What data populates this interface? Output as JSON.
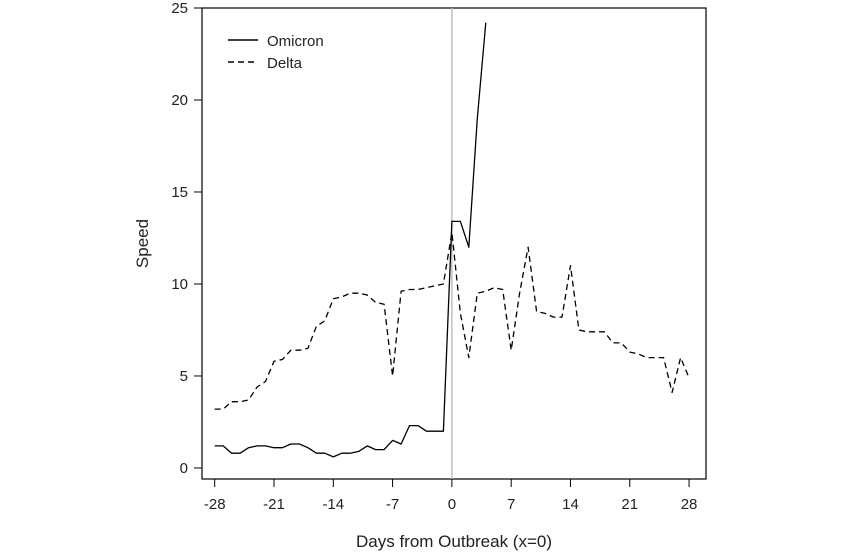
{
  "chart_data": {
    "type": "line",
    "xlabel": "Days from Outbreak (x=0)",
    "ylabel": "Speed",
    "xlim": [
      -29.5,
      30
    ],
    "ylim": [
      -0.6,
      25
    ],
    "xticks": [
      -28,
      -21,
      -14,
      -7,
      0,
      7,
      14,
      21,
      28
    ],
    "yticks": [
      0,
      5,
      10,
      15,
      20,
      25
    ],
    "xtick_labels": [
      "-28",
      "-21",
      "-14",
      "-7",
      "0",
      "7",
      "14",
      "21",
      "28"
    ],
    "ytick_labels": [
      "0",
      "5",
      "10",
      "15",
      "20",
      "25"
    ],
    "vline": 0,
    "legend_position": "top-left",
    "grid": false,
    "series": [
      {
        "name": "Omicron",
        "style": "solid",
        "color": "#000000",
        "x": [
          -28,
          -27,
          -26,
          -25,
          -24,
          -23,
          -22,
          -21,
          -20,
          -19,
          -18,
          -17,
          -16,
          -15,
          -14,
          -13,
          -12,
          -11,
          -10,
          -9,
          -8,
          -7,
          -6,
          -5,
          -4,
          -3,
          -2,
          -1,
          0,
          1,
          2,
          3,
          4
        ],
        "y": [
          1.2,
          1.2,
          0.8,
          0.8,
          1.1,
          1.2,
          1.2,
          1.1,
          1.1,
          1.3,
          1.3,
          1.1,
          0.8,
          0.8,
          0.6,
          0.8,
          0.8,
          0.9,
          1.2,
          1.0,
          1.0,
          1.5,
          1.3,
          2.3,
          2.3,
          2.0,
          2.0,
          2.0,
          13.4,
          13.4,
          12.0,
          19.0,
          24.2
        ]
      },
      {
        "name": "Delta",
        "style": "dashed",
        "color": "#000000",
        "x": [
          -28,
          -27,
          -26,
          -25,
          -24,
          -23,
          -22,
          -21,
          -20,
          -19,
          -18,
          -17,
          -16,
          -15,
          -14,
          -13,
          -12,
          -11,
          -10,
          -9,
          -8,
          -7,
          -6,
          -5,
          -4,
          -3,
          -2,
          -1,
          0,
          1,
          2,
          3,
          4,
          5,
          6,
          7,
          8,
          9,
          10,
          11,
          12,
          13,
          14,
          15,
          16,
          17,
          18,
          19,
          20,
          21,
          22,
          23,
          24,
          25,
          26,
          27,
          28
        ],
        "y": [
          3.2,
          3.2,
          3.6,
          3.6,
          3.7,
          4.4,
          4.7,
          5.8,
          5.9,
          6.4,
          6.4,
          6.5,
          7.7,
          8.0,
          9.2,
          9.3,
          9.5,
          9.5,
          9.4,
          9.0,
          8.9,
          5.0,
          9.6,
          9.7,
          9.7,
          9.8,
          9.9,
          10.0,
          12.8,
          8.4,
          6.0,
          9.5,
          9.6,
          9.8,
          9.7,
          6.4,
          9.5,
          12.0,
          8.5,
          8.4,
          8.2,
          8.2,
          11.0,
          7.5,
          7.4,
          7.4,
          7.4,
          6.8,
          6.8,
          6.3,
          6.2,
          6.0,
          6.0,
          6.0,
          4.1,
          6.0,
          4.9
        ]
      }
    ]
  }
}
